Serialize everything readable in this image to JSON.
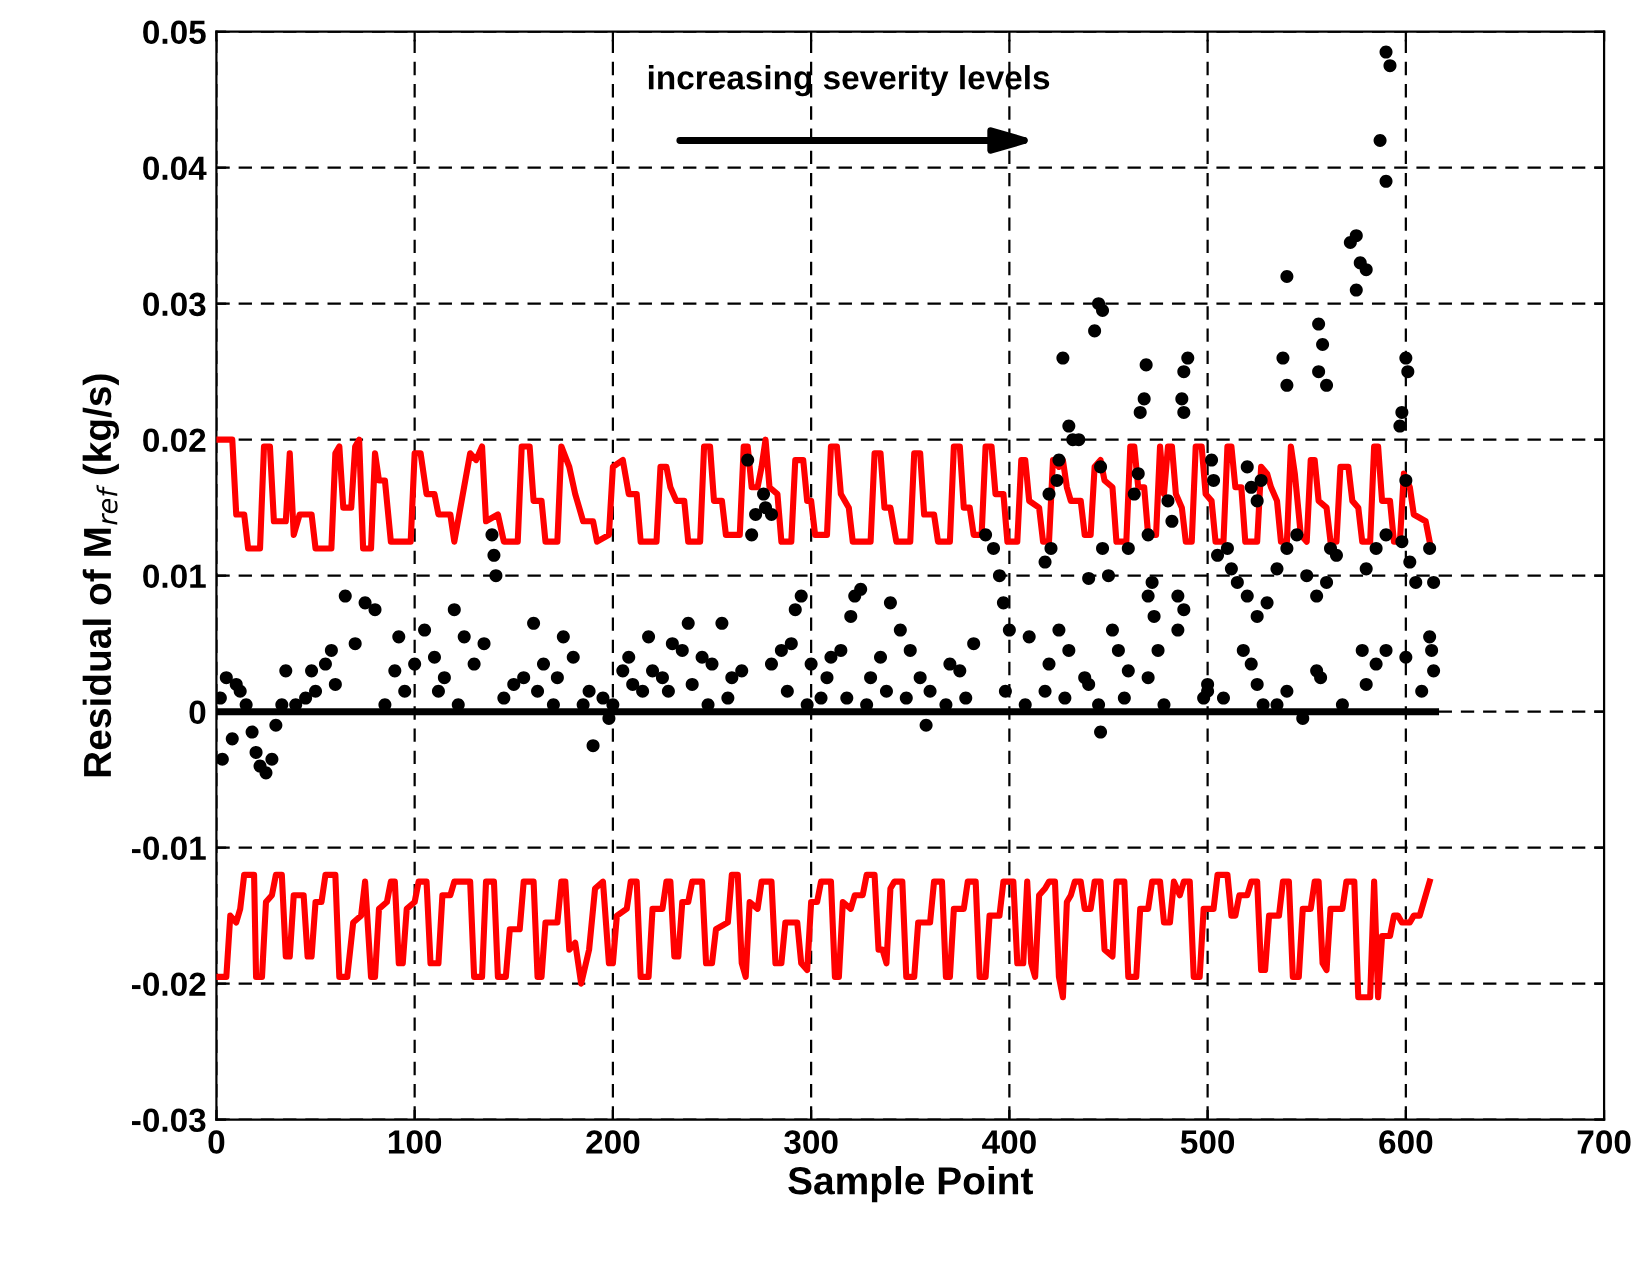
{
  "chart_data": {
    "type": "line",
    "xlabel": "Sample Point",
    "ylabel": "Residual of M$_{ref}$ (kg/s)",
    "annotations": [
      "increasing severity levels"
    ],
    "xlim": [
      0,
      700
    ],
    "xticks": [
      0,
      100,
      200,
      300,
      400,
      500,
      600,
      700
    ],
    "ylim": [
      -0.03,
      0.05
    ],
    "yticks": [
      -0.03,
      -0.02,
      -0.01,
      0,
      0.01,
      0.02,
      0.03,
      0.04,
      0.05
    ],
    "grid": true,
    "legend": false,
    "series": [
      {
        "color": "#ff0000",
        "x": [
          0,
          8,
          10,
          14,
          16,
          22,
          24,
          27,
          29,
          35,
          37,
          39,
          42,
          48,
          50,
          58,
          60,
          62,
          64,
          68,
          70,
          72,
          74,
          78,
          80,
          82,
          85,
          88,
          98,
          100,
          103,
          106,
          110,
          112,
          118,
          120,
          128,
          131,
          134,
          136,
          142,
          145,
          152,
          154,
          158,
          160,
          164,
          166,
          172,
          174,
          178,
          181,
          185,
          190,
          192,
          198,
          200,
          205,
          208,
          212,
          214,
          222,
          224,
          227,
          229,
          232,
          236,
          238,
          244,
          246,
          249,
          251,
          255,
          257,
          264,
          266,
          268,
          270,
          273,
          275,
          277,
          279,
          283,
          285,
          290,
          292,
          296,
          298,
          300,
          302,
          308,
          310,
          313,
          315,
          319,
          321,
          330,
          332,
          335,
          337,
          340,
          343,
          350,
          352,
          355,
          357,
          362,
          364,
          370,
          372,
          375,
          377,
          380,
          382,
          386,
          388,
          391,
          393,
          397,
          399,
          404,
          406,
          408,
          410,
          415,
          417,
          420,
          422,
          425,
          427,
          429,
          431,
          436,
          438,
          441,
          443,
          446,
          448,
          452,
          454,
          459,
          461,
          463,
          465,
          468,
          470,
          474,
          476,
          478,
          480,
          482,
          484,
          487,
          489,
          492,
          494,
          497,
          499,
          502,
          504,
          508,
          510,
          512,
          514,
          517,
          519,
          525,
          527,
          530,
          532,
          535,
          537,
          540,
          542,
          544,
          547,
          550,
          552,
          554,
          556,
          560,
          562,
          565,
          567,
          571,
          573,
          576,
          578,
          582,
          584,
          586,
          588,
          592,
          594,
          597,
          599,
          602,
          604,
          610,
          612
        ],
        "values": [
          0.02,
          0.02,
          0.0145,
          0.0145,
          0.012,
          0.012,
          0.0195,
          0.0195,
          0.014,
          0.014,
          0.019,
          0.013,
          0.0145,
          0.0145,
          0.012,
          0.012,
          0.019,
          0.0195,
          0.015,
          0.015,
          0.0195,
          0.02,
          0.012,
          0.012,
          0.019,
          0.017,
          0.017,
          0.0125,
          0.0125,
          0.019,
          0.019,
          0.016,
          0.016,
          0.0145,
          0.0145,
          0.0125,
          0.019,
          0.0185,
          0.0195,
          0.014,
          0.0145,
          0.0125,
          0.0125,
          0.0195,
          0.0195,
          0.0155,
          0.0155,
          0.0125,
          0.0125,
          0.0195,
          0.018,
          0.016,
          0.014,
          0.014,
          0.0125,
          0.013,
          0.018,
          0.0185,
          0.016,
          0.016,
          0.0125,
          0.0125,
          0.018,
          0.018,
          0.0165,
          0.0155,
          0.0155,
          0.0125,
          0.0125,
          0.0195,
          0.0195,
          0.0155,
          0.0155,
          0.013,
          0.013,
          0.0195,
          0.0195,
          0.0165,
          0.0165,
          0.018,
          0.02,
          0.0165,
          0.016,
          0.0125,
          0.0125,
          0.0185,
          0.0185,
          0.0155,
          0.0155,
          0.013,
          0.013,
          0.0195,
          0.0195,
          0.016,
          0.015,
          0.0125,
          0.0125,
          0.019,
          0.019,
          0.015,
          0.015,
          0.0125,
          0.0125,
          0.019,
          0.019,
          0.0145,
          0.0145,
          0.0125,
          0.0125,
          0.0195,
          0.0195,
          0.015,
          0.015,
          0.013,
          0.013,
          0.0195,
          0.0195,
          0.016,
          0.016,
          0.0125,
          0.0125,
          0.0185,
          0.0185,
          0.0155,
          0.015,
          0.0125,
          0.0125,
          0.0185,
          0.018,
          0.0185,
          0.0165,
          0.0155,
          0.0155,
          0.013,
          0.013,
          0.018,
          0.0185,
          0.017,
          0.0165,
          0.0125,
          0.0125,
          0.0195,
          0.0195,
          0.0165,
          0.0165,
          0.013,
          0.013,
          0.0195,
          0.016,
          0.0195,
          0.0195,
          0.016,
          0.015,
          0.0125,
          0.0125,
          0.0195,
          0.0195,
          0.016,
          0.0155,
          0.0125,
          0.0125,
          0.0195,
          0.0195,
          0.0165,
          0.0165,
          0.0125,
          0.0125,
          0.018,
          0.0175,
          0.0165,
          0.0155,
          0.0125,
          0.0125,
          0.0195,
          0.0175,
          0.013,
          0.0125,
          0.0185,
          0.0185,
          0.0155,
          0.015,
          0.0125,
          0.0125,
          0.018,
          0.018,
          0.0155,
          0.015,
          0.0125,
          0.0125,
          0.0195,
          0.0195,
          0.0155,
          0.0155,
          0.0125,
          0.0125,
          0.0175,
          0.0165,
          0.0145,
          0.014,
          0.0125
        ]
      },
      {
        "color": "#ff0000",
        "x": [
          0,
          5,
          7,
          10,
          12,
          14,
          19,
          20,
          23,
          25,
          28,
          30,
          33,
          35,
          37,
          39,
          44,
          46,
          48,
          50,
          53,
          55,
          60,
          62,
          66,
          69,
          73,
          75,
          78,
          80,
          82,
          86,
          88,
          90,
          92,
          94,
          96,
          100,
          102,
          106,
          108,
          112,
          114,
          118,
          120,
          128,
          130,
          134,
          136,
          140,
          142,
          146,
          148,
          153,
          155,
          160,
          162,
          164,
          166,
          172,
          174,
          176,
          178,
          181,
          184,
          188,
          191,
          195,
          198,
          200,
          202,
          207,
          209,
          212,
          214,
          218,
          220,
          225,
          227,
          229,
          231,
          233,
          235,
          238,
          240,
          245,
          247,
          250,
          252,
          258,
          260,
          263,
          265,
          267,
          269,
          273,
          275,
          280,
          282,
          285,
          287,
          293,
          295,
          298,
          300,
          303,
          305,
          310,
          312,
          314,
          316,
          320,
          322,
          326,
          328,
          332,
          334,
          336,
          338,
          340,
          342,
          346,
          348,
          352,
          354,
          360,
          362,
          366,
          368,
          370,
          372,
          377,
          379,
          383,
          385,
          388,
          390,
          395,
          397,
          402,
          404,
          407,
          409,
          411,
          413,
          415,
          418,
          420,
          423,
          425,
          427,
          429,
          431,
          433,
          436,
          438,
          441,
          443,
          446,
          448,
          452,
          454,
          458,
          460,
          464,
          466,
          470,
          472,
          476,
          478,
          481,
          483,
          486,
          488,
          491,
          493,
          496,
          498,
          503,
          505,
          510,
          512,
          514,
          516,
          520,
          522,
          525,
          527,
          529,
          531,
          536,
          538,
          541,
          543,
          546,
          548,
          552,
          554,
          556,
          558,
          560,
          562,
          568,
          570,
          574,
          576,
          582,
          584,
          586,
          588,
          592,
          594,
          596,
          598,
          602,
          604,
          607,
          612
        ],
        "values": [
          -0.0195,
          -0.0195,
          -0.015,
          -0.0155,
          -0.0145,
          -0.012,
          -0.012,
          -0.0195,
          -0.0195,
          -0.014,
          -0.0135,
          -0.012,
          -0.012,
          -0.018,
          -0.018,
          -0.0135,
          -0.0135,
          -0.018,
          -0.018,
          -0.014,
          -0.014,
          -0.012,
          -0.012,
          -0.0195,
          -0.0195,
          -0.0155,
          -0.015,
          -0.0125,
          -0.0195,
          -0.0195,
          -0.0145,
          -0.014,
          -0.0125,
          -0.0125,
          -0.0185,
          -0.0185,
          -0.0145,
          -0.014,
          -0.0125,
          -0.0125,
          -0.0185,
          -0.0185,
          -0.0135,
          -0.0135,
          -0.0125,
          -0.0125,
          -0.0195,
          -0.0195,
          -0.0125,
          -0.0125,
          -0.0195,
          -0.0195,
          -0.016,
          -0.016,
          -0.0125,
          -0.0125,
          -0.0195,
          -0.0195,
          -0.0155,
          -0.0155,
          -0.0125,
          -0.0125,
          -0.0175,
          -0.017,
          -0.02,
          -0.0175,
          -0.013,
          -0.0125,
          -0.0185,
          -0.0185,
          -0.015,
          -0.0145,
          -0.0125,
          -0.0125,
          -0.0195,
          -0.0195,
          -0.0145,
          -0.0145,
          -0.0125,
          -0.0125,
          -0.018,
          -0.018,
          -0.014,
          -0.014,
          -0.0125,
          -0.0125,
          -0.0185,
          -0.0185,
          -0.016,
          -0.0155,
          -0.012,
          -0.012,
          -0.0185,
          -0.0195,
          -0.014,
          -0.0145,
          -0.0125,
          -0.0125,
          -0.0185,
          -0.0185,
          -0.0155,
          -0.0155,
          -0.0185,
          -0.019,
          -0.014,
          -0.014,
          -0.0125,
          -0.0125,
          -0.0195,
          -0.0195,
          -0.014,
          -0.0145,
          -0.0135,
          -0.0135,
          -0.012,
          -0.012,
          -0.0175,
          -0.0175,
          -0.0185,
          -0.013,
          -0.0125,
          -0.0125,
          -0.0195,
          -0.0195,
          -0.0155,
          -0.0155,
          -0.0125,
          -0.0125,
          -0.0195,
          -0.0195,
          -0.0145,
          -0.0145,
          -0.0125,
          -0.0125,
          -0.0195,
          -0.0195,
          -0.015,
          -0.015,
          -0.0125,
          -0.0125,
          -0.0185,
          -0.0185,
          -0.0125,
          -0.0185,
          -0.0195,
          -0.0135,
          -0.013,
          -0.0125,
          -0.0125,
          -0.0195,
          -0.021,
          -0.014,
          -0.0135,
          -0.0125,
          -0.0125,
          -0.0145,
          -0.0145,
          -0.0125,
          -0.0125,
          -0.0175,
          -0.018,
          -0.0125,
          -0.0125,
          -0.0195,
          -0.0195,
          -0.0145,
          -0.0145,
          -0.0125,
          -0.0125,
          -0.0155,
          -0.0155,
          -0.0125,
          -0.0135,
          -0.0125,
          -0.0125,
          -0.0195,
          -0.0195,
          -0.0145,
          -0.0145,
          -0.012,
          -0.012,
          -0.015,
          -0.015,
          -0.0135,
          -0.0135,
          -0.0125,
          -0.0125,
          -0.019,
          -0.019,
          -0.015,
          -0.015,
          -0.0125,
          -0.0125,
          -0.0195,
          -0.0195,
          -0.0145,
          -0.0145,
          -0.0125,
          -0.0125,
          -0.0185,
          -0.019,
          -0.0145,
          -0.0145,
          -0.0125,
          -0.0125,
          -0.021,
          -0.021,
          -0.0125,
          -0.021,
          -0.0165,
          -0.0165,
          -0.015,
          -0.015,
          -0.0155,
          -0.0155,
          -0.015,
          -0.015,
          -0.0125
        ]
      },
      {
        "color": "#000000",
        "x": [
          0,
          615
        ],
        "values": [
          0,
          0
        ]
      },
      {
        "type": "scatter",
        "color": "#000000",
        "x": [
          590,
          592,
          587,
          590,
          575,
          572,
          577,
          580,
          575,
          540,
          556,
          558,
          556,
          560,
          538,
          540,
          600,
          601,
          598,
          597,
          600,
          445,
          447,
          443,
          427,
          469,
          490,
          488,
          487,
          488,
          468,
          466,
          503,
          502,
          520,
          522,
          525,
          527,
          430,
          432,
          435,
          425,
          424,
          420,
          446,
          465,
          463,
          470,
          480,
          482,
          447,
          418,
          421,
          440,
          450,
          460,
          470,
          472,
          473,
          485,
          485,
          488,
          505,
          510,
          512,
          515,
          520,
          525,
          530,
          535,
          540,
          545,
          550,
          555,
          560,
          562,
          565,
          580,
          585,
          590,
          598,
          602,
          605,
          612,
          614,
          612,
          613,
          614,
          600,
          590,
          585,
          580,
          555,
          557,
          540,
          535,
          525,
          522,
          508,
          500,
          500,
          475,
          470,
          460,
          455,
          452,
          445,
          446,
          440,
          430,
          425,
          420,
          410,
          400,
          397,
          395,
          392,
          388,
          382,
          375,
          370,
          360,
          355,
          350,
          345,
          340,
          335,
          330,
          325,
          322,
          320,
          315,
          310,
          305,
          300,
          295,
          292,
          290,
          285,
          280,
          276,
          277,
          280,
          272,
          270,
          268,
          265,
          260,
          255,
          250,
          245,
          240,
          235,
          230,
          225,
          220,
          215,
          210,
          205,
          200,
          195,
          190,
          185,
          180,
          175,
          170,
          165,
          160,
          155,
          150,
          140,
          139,
          141,
          135,
          130,
          125,
          120,
          115,
          110,
          105,
          100,
          95,
          90,
          80,
          75,
          70,
          65,
          60,
          55,
          50,
          45,
          40,
          35,
          30,
          25,
          22,
          20,
          15,
          12,
          10,
          8,
          5,
          3,
          2,
          28,
          18,
          33,
          48,
          58,
          85,
          92,
          112,
          122,
          145,
          162,
          172,
          188,
          198,
          208,
          218,
          228,
          238,
          248,
          258,
          288,
          298,
          308,
          318,
          328,
          338,
          348,
          358,
          368,
          378,
          398,
          408,
          418,
          428,
          438,
          458,
          478,
          498,
          518,
          528,
          548,
          568,
          578,
          608
        ],
        "values": [
          0.0485,
          0.0475,
          0.042,
          0.039,
          0.035,
          0.0345,
          0.033,
          0.0325,
          0.031,
          0.032,
          0.0285,
          0.027,
          0.025,
          0.024,
          0.026,
          0.024,
          0.026,
          0.025,
          0.022,
          0.021,
          0.017,
          0.03,
          0.0295,
          0.028,
          0.026,
          0.0255,
          0.026,
          0.025,
          0.023,
          0.022,
          0.023,
          0.022,
          0.017,
          0.0185,
          0.018,
          0.0165,
          0.0155,
          0.017,
          0.021,
          0.02,
          0.02,
          0.0185,
          0.017,
          0.016,
          0.018,
          0.0175,
          0.016,
          0.013,
          0.0155,
          0.014,
          0.012,
          0.011,
          0.012,
          0.0098,
          0.01,
          0.012,
          0.0085,
          0.0095,
          0.007,
          0.0085,
          0.006,
          0.0075,
          0.0115,
          0.012,
          0.0105,
          0.0095,
          0.0085,
          0.007,
          0.008,
          0.0105,
          0.012,
          0.013,
          0.01,
          0.0085,
          0.0095,
          0.012,
          0.0115,
          0.0105,
          0.012,
          0.013,
          0.0125,
          0.011,
          0.0095,
          0.012,
          0.0095,
          0.0055,
          0.0045,
          0.003,
          0.004,
          0.0045,
          0.0035,
          0.002,
          0.003,
          0.0025,
          0.0015,
          0.0005,
          0.002,
          0.0035,
          0.001,
          0.0015,
          0.002,
          0.0045,
          0.0025,
          0.003,
          0.0045,
          0.006,
          0.0005,
          -0.0015,
          0.002,
          0.0045,
          0.006,
          0.0035,
          0.0055,
          0.006,
          0.008,
          0.01,
          0.012,
          0.013,
          0.005,
          0.003,
          0.0035,
          0.0015,
          0.0025,
          0.0045,
          0.006,
          0.008,
          0.004,
          0.0025,
          0.009,
          0.0085,
          0.007,
          0.0045,
          0.004,
          0.001,
          0.0035,
          0.0085,
          0.0075,
          0.005,
          0.0045,
          0.0035,
          0.016,
          0.015,
          0.0145,
          0.0145,
          0.013,
          0.0185,
          0.003,
          0.0025,
          0.0065,
          0.0035,
          0.004,
          0.002,
          0.0045,
          0.005,
          0.0025,
          0.003,
          0.0015,
          0.002,
          0.003,
          0.0005,
          0.001,
          -0.0025,
          0.0005,
          0.004,
          0.0055,
          0.0005,
          0.0035,
          0.0065,
          0.0025,
          0.002,
          0.0115,
          0.013,
          0.01,
          0.005,
          0.0035,
          0.0055,
          0.0075,
          0.0025,
          0.004,
          0.006,
          0.0035,
          0.0015,
          0.003,
          0.0075,
          0.008,
          0.005,
          0.0085,
          0.002,
          0.0035,
          0.0015,
          0.001,
          0.0005,
          0.003,
          -0.001,
          -0.0045,
          -0.004,
          -0.003,
          0.0005,
          0.0015,
          0.002,
          -0.002,
          0.0025,
          -0.0035,
          0.001,
          -0.0035,
          -0.0015,
          0.0005,
          0.003,
          0.0045,
          0.0005,
          0.0055,
          0.0015,
          0.0005,
          0.001,
          0.0015,
          0.0025,
          0.0015,
          -0.0005,
          0.004,
          0.0055,
          0.0015,
          0.0065,
          0.0005,
          0.001,
          0.0015,
          0.0005,
          0.0025,
          0.001,
          0.0005,
          0.0015,
          0.001,
          -0.001,
          0.0005,
          0.001,
          0.0015,
          0.0005,
          0.0015,
          0.001,
          0.0025,
          0.001,
          0.0005,
          0.001,
          0.0045,
          0.0005,
          -0.0005,
          0.0005,
          0.0045,
          0.0015
        ]
      }
    ]
  }
}
